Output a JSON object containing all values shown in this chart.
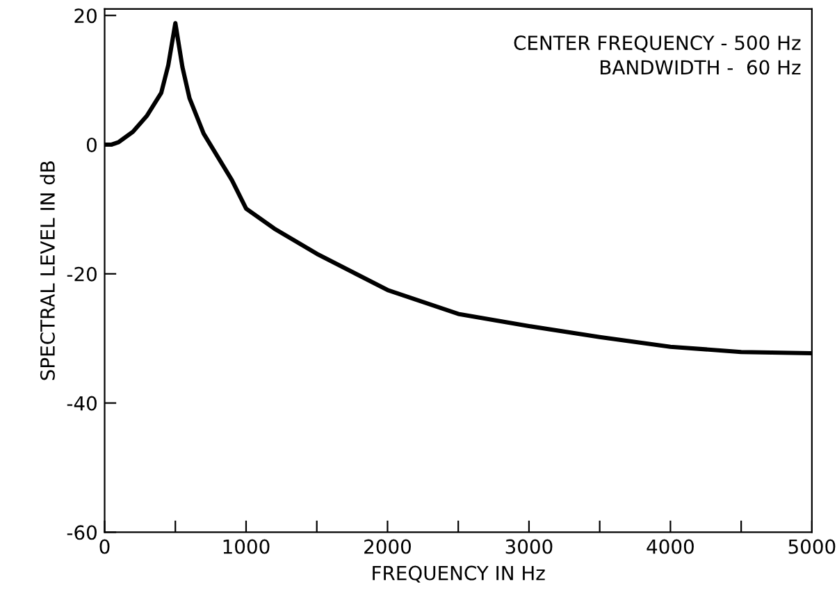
{
  "chart_data": {
    "type": "line",
    "xlabel": "FREQUENCY IN Hz",
    "ylabel": "SPECTRAL LEVEL IN dB",
    "annotations": [
      "CENTER FREQUENCY - 500 Hz\nBANDWIDTH -  60 Hz"
    ],
    "x": [
      0,
      50,
      100,
      200,
      300,
      400,
      450,
      500,
      550,
      600,
      700,
      800,
      900,
      1000,
      1200,
      1500,
      1750,
      2000,
      2500,
      3000,
      3500,
      4000,
      4500,
      5000
    ],
    "series": [
      {
        "color": "#000000",
        "values": [
          0,
          0,
          0.4,
          2,
          4.5,
          8,
          12.3,
          18.8,
          12,
          7.2,
          1.7,
          -1.9,
          -5.5,
          -9.9,
          -13,
          -16.9,
          -19.7,
          -22.5,
          -26.2,
          -28.1,
          -29.8,
          -31.3,
          -32.1,
          -32.3
        ]
      }
    ],
    "xlim": [
      0,
      5000
    ],
    "ylim": [
      -60,
      21
    ],
    "xticks": [
      0,
      {
        "value": 500,
        "label": null
      },
      1000,
      {
        "value": 1500,
        "label": null
      },
      2000,
      {
        "value": 2500,
        "label": null
      },
      3000,
      {
        "value": 3500,
        "label": null
      },
      4000,
      {
        "value": 4500,
        "label": null
      },
      5000
    ],
    "yticks": [
      20,
      0,
      -20,
      -40,
      -60
    ],
    "grid": false,
    "legend": false,
    "marker": "none",
    "line_style": "solid"
  }
}
